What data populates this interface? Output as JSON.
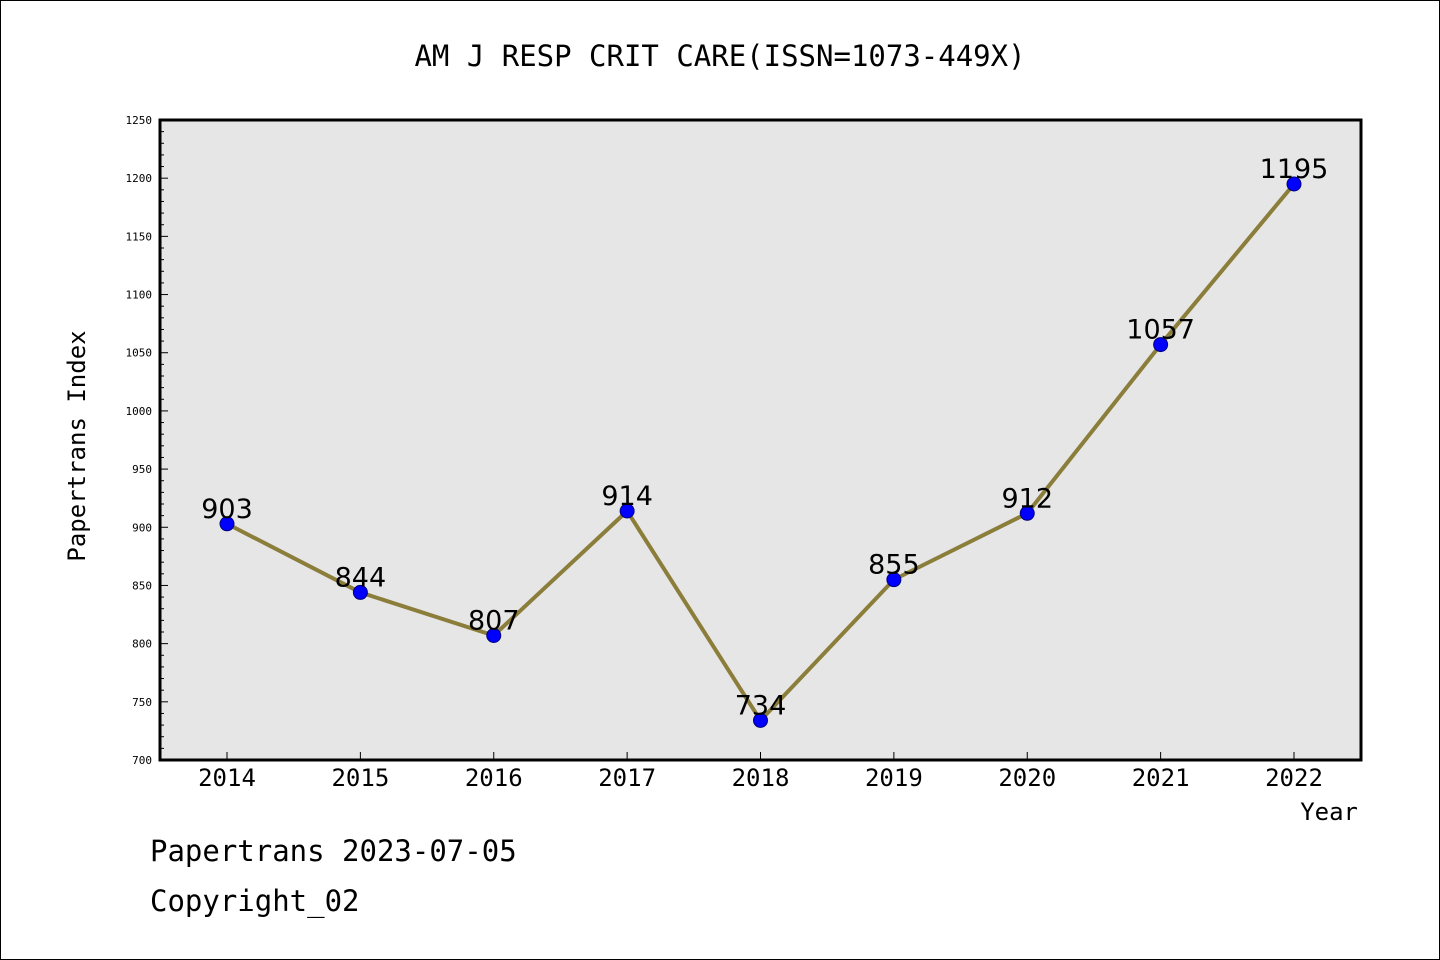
{
  "chart_data": {
    "type": "line",
    "title": "AM J RESP CRIT CARE(ISSN=1073-449X)",
    "xlabel": "Year",
    "ylabel": "Papertrans Index",
    "categories": [
      "2014",
      "2015",
      "2016",
      "2017",
      "2018",
      "2019",
      "2020",
      "2021",
      "2022"
    ],
    "series": [
      {
        "values": [
          903,
          844,
          807,
          914,
          734,
          855,
          912,
          1057,
          1195
        ]
      }
    ],
    "data_labels": [
      "903",
      "844",
      "807",
      "914",
      "734",
      "855",
      "912",
      "1057",
      "1195"
    ],
    "ylim": [
      700,
      1250
    ],
    "y_ticks": [
      "700",
      "750",
      "800",
      "850",
      "900",
      "950",
      "1000",
      "1050",
      "1100",
      "1150",
      "1200",
      "1250"
    ],
    "grid": false,
    "legend": "none",
    "colors": {
      "line": "#8b7d3a",
      "marker": "#0000ff",
      "plot_background": "#e6e6e6"
    }
  },
  "footer": {
    "date_line": "Papertrans 2023-07-05",
    "copyright": "Copyright_02"
  }
}
